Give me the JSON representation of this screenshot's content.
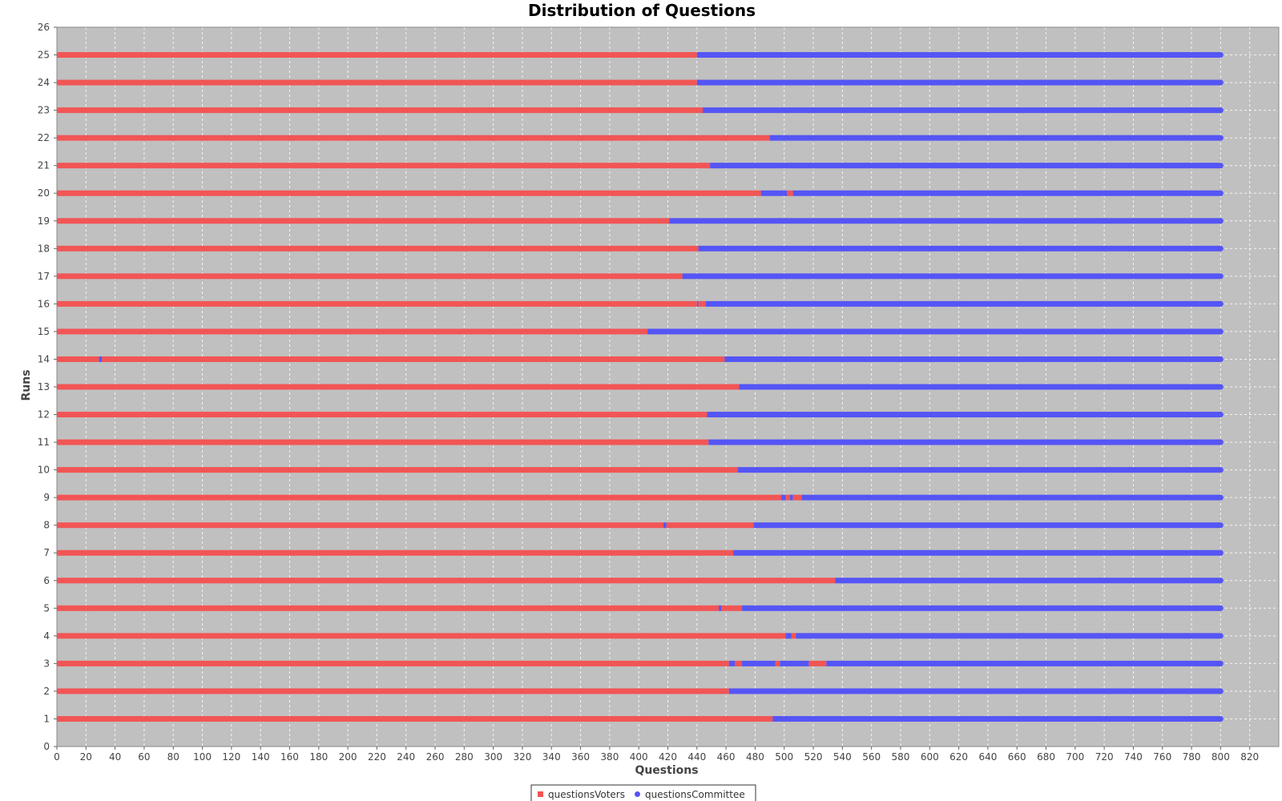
{
  "chart_data": {
    "type": "bar",
    "orientation": "horizontal",
    "stacked": true,
    "title": "Distribution of Questions",
    "xlabel": "Questions",
    "ylabel": "Runs",
    "xlim": [
      0,
      840
    ],
    "ylim": [
      0,
      26
    ],
    "x_ticks": [
      0,
      20,
      40,
      60,
      80,
      100,
      120,
      140,
      160,
      180,
      200,
      220,
      240,
      260,
      280,
      300,
      320,
      340,
      360,
      380,
      400,
      420,
      440,
      460,
      480,
      500,
      520,
      540,
      560,
      580,
      600,
      620,
      640,
      660,
      680,
      700,
      720,
      740,
      760,
      780,
      800,
      820
    ],
    "y_ticks": [
      0,
      1,
      2,
      3,
      4,
      5,
      6,
      7,
      8,
      9,
      10,
      11,
      12,
      13,
      14,
      15,
      16,
      17,
      18,
      19,
      20,
      21,
      22,
      23,
      24,
      25,
      26
    ],
    "grid": true,
    "legend_position": "bottom",
    "colors": {
      "questionsVoters": "#f25555",
      "questionsCommittee": "#5555f5",
      "plot_background": "#c0c0c0"
    },
    "series": [
      {
        "name": "questionsVoters",
        "marker": "square"
      },
      {
        "name": "questionsCommittee",
        "marker": "circle"
      }
    ],
    "runs": [
      {
        "run": 1,
        "segments": [
          [
            "questionsVoters",
            0,
            492
          ],
          [
            "questionsCommittee",
            492,
            800
          ]
        ]
      },
      {
        "run": 2,
        "segments": [
          [
            "questionsVoters",
            0,
            462
          ],
          [
            "questionsCommittee",
            462,
            800
          ]
        ]
      },
      {
        "run": 3,
        "segments": [
          [
            "questionsVoters",
            0,
            462
          ],
          [
            "questionsCommittee",
            462,
            466
          ],
          [
            "questionsVoters",
            466,
            471
          ],
          [
            "questionsCommittee",
            471,
            494
          ],
          [
            "questionsVoters",
            494,
            497
          ],
          [
            "questionsCommittee",
            497,
            517
          ],
          [
            "questionsVoters",
            517,
            529
          ],
          [
            "questionsCommittee",
            529,
            800
          ]
        ]
      },
      {
        "run": 4,
        "segments": [
          [
            "questionsVoters",
            0,
            501
          ],
          [
            "questionsCommittee",
            501,
            505
          ],
          [
            "questionsVoters",
            505,
            508
          ],
          [
            "questionsCommittee",
            508,
            800
          ]
        ]
      },
      {
        "run": 5,
        "segments": [
          [
            "questionsVoters",
            0,
            455
          ],
          [
            "questionsCommittee",
            455,
            457
          ],
          [
            "questionsVoters",
            457,
            471
          ],
          [
            "questionsCommittee",
            471,
            800
          ]
        ]
      },
      {
        "run": 6,
        "segments": [
          [
            "questionsVoters",
            0,
            535
          ],
          [
            "questionsCommittee",
            535,
            800
          ]
        ]
      },
      {
        "run": 7,
        "segments": [
          [
            "questionsVoters",
            0,
            465
          ],
          [
            "questionsCommittee",
            465,
            800
          ]
        ]
      },
      {
        "run": 8,
        "segments": [
          [
            "questionsVoters",
            0,
            417
          ],
          [
            "questionsCommittee",
            417,
            419
          ],
          [
            "questionsVoters",
            419,
            479
          ],
          [
            "questionsCommittee",
            479,
            800
          ]
        ]
      },
      {
        "run": 9,
        "segments": [
          [
            "questionsVoters",
            0,
            498
          ],
          [
            "questionsCommittee",
            498,
            501
          ],
          [
            "questionsVoters",
            501,
            504
          ],
          [
            "questionsCommittee",
            504,
            506
          ],
          [
            "questionsVoters",
            506,
            512
          ],
          [
            "questionsCommittee",
            512,
            800
          ]
        ]
      },
      {
        "run": 10,
        "segments": [
          [
            "questionsVoters",
            0,
            468
          ],
          [
            "questionsCommittee",
            468,
            800
          ]
        ]
      },
      {
        "run": 11,
        "segments": [
          [
            "questionsVoters",
            0,
            448
          ],
          [
            "questionsCommittee",
            448,
            800
          ]
        ]
      },
      {
        "run": 12,
        "segments": [
          [
            "questionsVoters",
            0,
            447
          ],
          [
            "questionsCommittee",
            447,
            800
          ]
        ]
      },
      {
        "run": 13,
        "segments": [
          [
            "questionsVoters",
            0,
            469
          ],
          [
            "questionsCommittee",
            469,
            800
          ]
        ]
      },
      {
        "run": 14,
        "segments": [
          [
            "questionsVoters",
            0,
            29
          ],
          [
            "questionsCommittee",
            29,
            31
          ],
          [
            "questionsVoters",
            31,
            459
          ],
          [
            "questionsCommittee",
            459,
            800
          ]
        ]
      },
      {
        "run": 15,
        "segments": [
          [
            "questionsVoters",
            0,
            406
          ],
          [
            "questionsCommittee",
            406,
            800
          ]
        ]
      },
      {
        "run": 16,
        "segments": [
          [
            "questionsVoters",
            0,
            440
          ],
          [
            "questionsCommittee",
            440,
            441
          ],
          [
            "questionsVoters",
            441,
            446
          ],
          [
            "questionsCommittee",
            446,
            800
          ]
        ]
      },
      {
        "run": 17,
        "segments": [
          [
            "questionsVoters",
            0,
            430
          ],
          [
            "questionsCommittee",
            430,
            800
          ]
        ]
      },
      {
        "run": 18,
        "segments": [
          [
            "questionsVoters",
            0,
            441
          ],
          [
            "questionsCommittee",
            441,
            800
          ]
        ]
      },
      {
        "run": 19,
        "segments": [
          [
            "questionsVoters",
            0,
            421
          ],
          [
            "questionsCommittee",
            421,
            800
          ]
        ]
      },
      {
        "run": 20,
        "segments": [
          [
            "questionsVoters",
            0,
            484
          ],
          [
            "questionsCommittee",
            484,
            502
          ],
          [
            "questionsVoters",
            502,
            506
          ],
          [
            "questionsCommittee",
            506,
            800
          ]
        ]
      },
      {
        "run": 21,
        "segments": [
          [
            "questionsVoters",
            0,
            449
          ],
          [
            "questionsCommittee",
            449,
            800
          ]
        ]
      },
      {
        "run": 22,
        "segments": [
          [
            "questionsVoters",
            0,
            490
          ],
          [
            "questionsCommittee",
            490,
            800
          ]
        ]
      },
      {
        "run": 23,
        "segments": [
          [
            "questionsVoters",
            0,
            444
          ],
          [
            "questionsCommittee",
            444,
            800
          ]
        ]
      },
      {
        "run": 24,
        "segments": [
          [
            "questionsVoters",
            0,
            440
          ],
          [
            "questionsCommittee",
            440,
            800
          ]
        ]
      },
      {
        "run": 25,
        "segments": [
          [
            "questionsVoters",
            0,
            440
          ],
          [
            "questionsCommittee",
            440,
            800
          ]
        ]
      }
    ]
  }
}
